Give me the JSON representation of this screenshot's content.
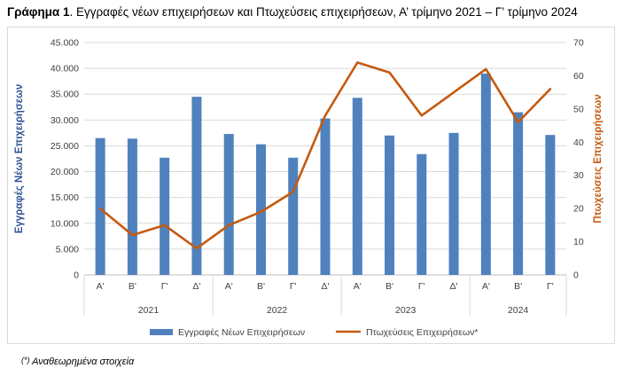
{
  "title": {
    "bold": "Γράφημα 1",
    "rest": ". Εγγραφές νέων επιχειρήσεων και Πτωχεύσεις επιχειρήσεων, Α’ τρίμηνο 2021 – Γ’ τρίμηνο 2024"
  },
  "footnote": {
    "marker": "(*)",
    "text": " Αναθεωρημένα στοιχεία"
  },
  "chart_data": {
    "type": "bar",
    "categories": [
      "Α'",
      "Β'",
      "Γ'",
      "Δ'",
      "Α'",
      "Β'",
      "Γ'",
      "Δ'",
      "Α'",
      "Β'",
      "Γ'",
      "Δ'",
      "Α'",
      "Β'",
      "Γ'"
    ],
    "groups": [
      {
        "label": "2021",
        "count": 4
      },
      {
        "label": "2022",
        "count": 4
      },
      {
        "label": "2023",
        "count": 4
      },
      {
        "label": "2024",
        "count": 3
      }
    ],
    "series": [
      {
        "name": "Εγγραφές Νέων Επιχειρήσεων",
        "type": "bar",
        "axis": "left",
        "color": "#4f81bd",
        "values": [
          26500,
          26400,
          22700,
          34500,
          27300,
          25300,
          22700,
          30300,
          34300,
          27000,
          23400,
          27500,
          39000,
          31500,
          27100
        ]
      },
      {
        "name": "Πτωχεύσεις Επιχειρήσεων*",
        "type": "line",
        "axis": "right",
        "color": "#c55a11",
        "values": [
          20,
          12,
          15,
          8,
          15,
          19,
          25,
          48,
          64,
          61,
          48,
          55,
          62,
          46,
          56
        ]
      }
    ],
    "ylabel": "Εγγραφές Νέων Επιχειρήσεων",
    "y2label": "Πτωχεύσεις Επιχειρήσεων",
    "ylim": [
      0,
      45000
    ],
    "y2lim": [
      0,
      70
    ],
    "yticks": [
      "0",
      "5.000",
      "10.000",
      "15.000",
      "20.000",
      "25.000",
      "30.000",
      "35.000",
      "40.000",
      "45.000"
    ],
    "y2ticks": [
      "0",
      "10",
      "20",
      "30",
      "40",
      "50",
      "60",
      "70"
    ],
    "grid": true,
    "legend_position": "bottom",
    "label_color_left": "#2f5496",
    "label_color_right": "#c55a11"
  }
}
